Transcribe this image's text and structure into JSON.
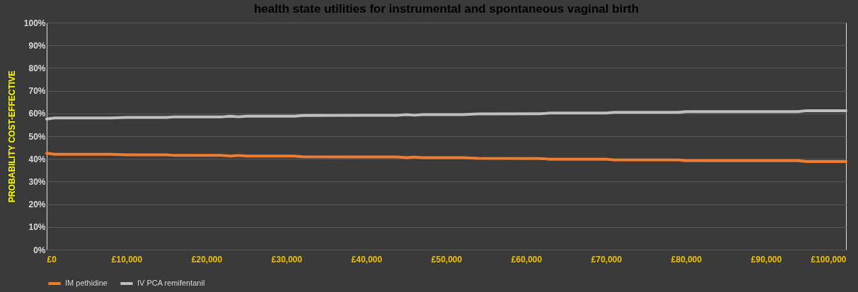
{
  "chart_data": {
    "type": "line",
    "title": "health state utilities for instrumental and spontaneous vaginal birth",
    "ylabel": "PROBABILITY COST-EFFECTIVE",
    "x": [
      0,
      1000,
      8000,
      10000,
      15000,
      16000,
      22000,
      23000,
      24000,
      25000,
      31000,
      32000,
      44000,
      45000,
      46000,
      47000,
      52000,
      54000,
      62000,
      63000,
      70000,
      71000,
      79000,
      80000,
      94000,
      95000,
      100000
    ],
    "series": [
      {
        "name": "IM pethidine",
        "color": "#ed7d31",
        "values": [
          42.5,
          42,
          42,
          41.8,
          41.8,
          41.5,
          41.5,
          41.2,
          41.5,
          41.2,
          41.2,
          40.9,
          40.8,
          40.5,
          40.8,
          40.5,
          40.5,
          40.2,
          40.1,
          39.8,
          39.8,
          39.5,
          39.5,
          39.2,
          39.2,
          38.8,
          38.8
        ]
      },
      {
        "name": "IV PCA remifentanil",
        "color": "#bfbfbf",
        "values": [
          57.5,
          58,
          58,
          58.2,
          58.2,
          58.5,
          58.5,
          58.8,
          58.5,
          58.8,
          58.8,
          59.1,
          59.2,
          59.5,
          59.2,
          59.5,
          59.5,
          59.8,
          59.9,
          60.2,
          60.2,
          60.5,
          60.5,
          60.8,
          60.8,
          61.2,
          61.2
        ]
      }
    ],
    "xlim": [
      0,
      100000
    ],
    "xticks": [
      {
        "value": 0,
        "label": "£0"
      },
      {
        "value": 10000,
        "label": "£10,000"
      },
      {
        "value": 20000,
        "label": "£20,000"
      },
      {
        "value": 30000,
        "label": "£30,000"
      },
      {
        "value": 40000,
        "label": "£40,000"
      },
      {
        "value": 50000,
        "label": "£50,000"
      },
      {
        "value": 60000,
        "label": "£60,000"
      },
      {
        "value": 70000,
        "label": "£70,000"
      },
      {
        "value": 80000,
        "label": "£80,000"
      },
      {
        "value": 90000,
        "label": "£90,000"
      },
      {
        "value": 100000,
        "label": "£100,000"
      }
    ],
    "ylim": [
      0,
      100
    ],
    "yticks": [
      {
        "value": 0,
        "label": "0%"
      },
      {
        "value": 10,
        "label": "10%"
      },
      {
        "value": 20,
        "label": "20%"
      },
      {
        "value": 30,
        "label": "30%"
      },
      {
        "value": 40,
        "label": "40%"
      },
      {
        "value": 50,
        "label": "50%"
      },
      {
        "value": 60,
        "label": "60%"
      },
      {
        "value": 70,
        "label": "70%"
      },
      {
        "value": 80,
        "label": "80%"
      },
      {
        "value": 90,
        "label": "90%"
      },
      {
        "value": 100,
        "label": "100%"
      }
    ],
    "grid": "y",
    "legend": "bottom",
    "marker": "none",
    "line_style": "solid"
  }
}
